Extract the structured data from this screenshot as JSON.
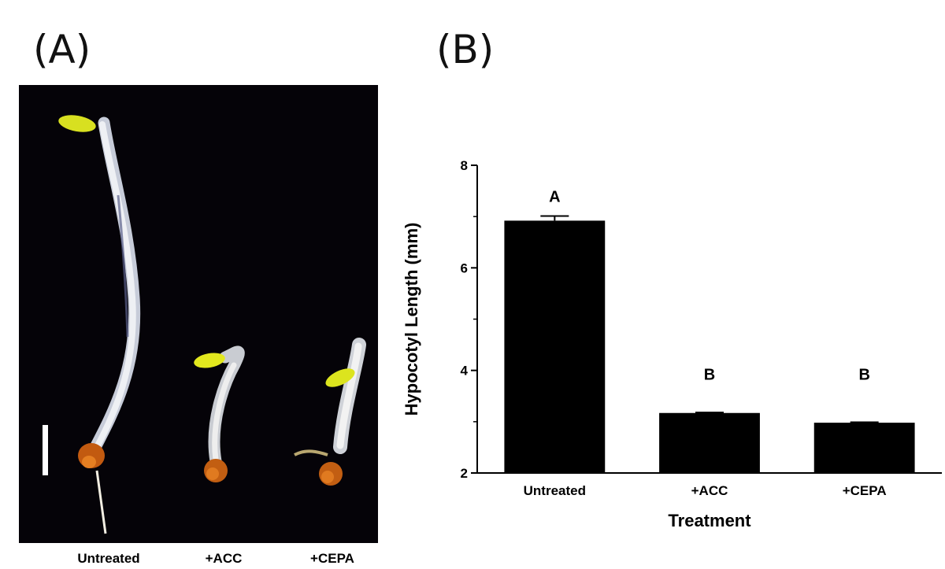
{
  "panels": {
    "a_label": "(A)",
    "b_label": "(B)"
  },
  "photo": {
    "captions": [
      "Untreated",
      "+ACC",
      "+CEPA"
    ]
  },
  "chart_data": {
    "type": "bar",
    "xlabel": "Treatment",
    "ylabel": "Hypocotyl Length (mm)",
    "categories": [
      "Untreated",
      "+ACC",
      "+CEPA"
    ],
    "values": [
      6.92,
      3.17,
      2.98
    ],
    "errors": [
      0.09,
      0.01,
      0.01
    ],
    "significance": [
      "A",
      "B",
      "B"
    ],
    "ylim": [
      2,
      8
    ],
    "yticks": [
      2,
      4,
      6,
      8
    ],
    "grid": false,
    "bar_color": "#000000"
  }
}
